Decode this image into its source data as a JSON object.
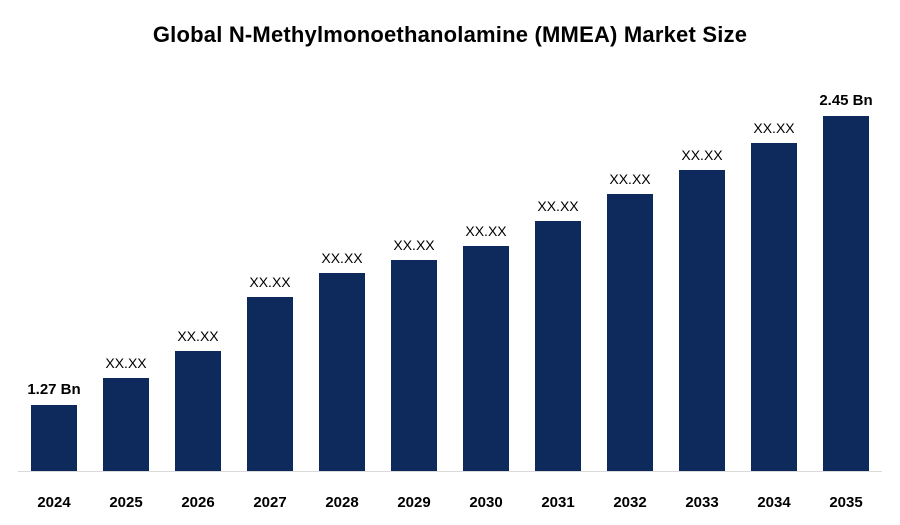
{
  "title": "Global N-Methylmonoethanolamine (MMEA) Market Size",
  "chart_data": {
    "type": "bar",
    "title": "Global N-Methylmonoethanolamine (MMEA) Market Size",
    "categories": [
      "2024",
      "2025",
      "2026",
      "2027",
      "2028",
      "2029",
      "2030",
      "2031",
      "2032",
      "2033",
      "2034",
      "2035"
    ],
    "values": [
      1.27,
      1.38,
      1.49,
      1.71,
      1.81,
      1.86,
      1.92,
      2.02,
      2.13,
      2.23,
      2.34,
      2.45
    ],
    "bar_labels": [
      "1.27 Bn",
      "XX.XX",
      "XX.XX",
      "XX.XX",
      "XX.XX",
      "XX.XX",
      "XX.XX",
      "XX.XX",
      "XX.XX",
      "XX.XX",
      "XX.XX",
      "2.45 Bn"
    ],
    "bar_label_bold": [
      true,
      false,
      false,
      false,
      false,
      false,
      false,
      false,
      false,
      false,
      false,
      true
    ],
    "unit": "Bn",
    "bar_color": "#0e2a5c",
    "label_color": "#000000",
    "xlabel": "",
    "ylabel": "",
    "ylim": [
      1.0,
      2.45
    ],
    "grid": false,
    "legend": false,
    "axis_labels_shown": false,
    "first_last_values_shown_only": true
  }
}
